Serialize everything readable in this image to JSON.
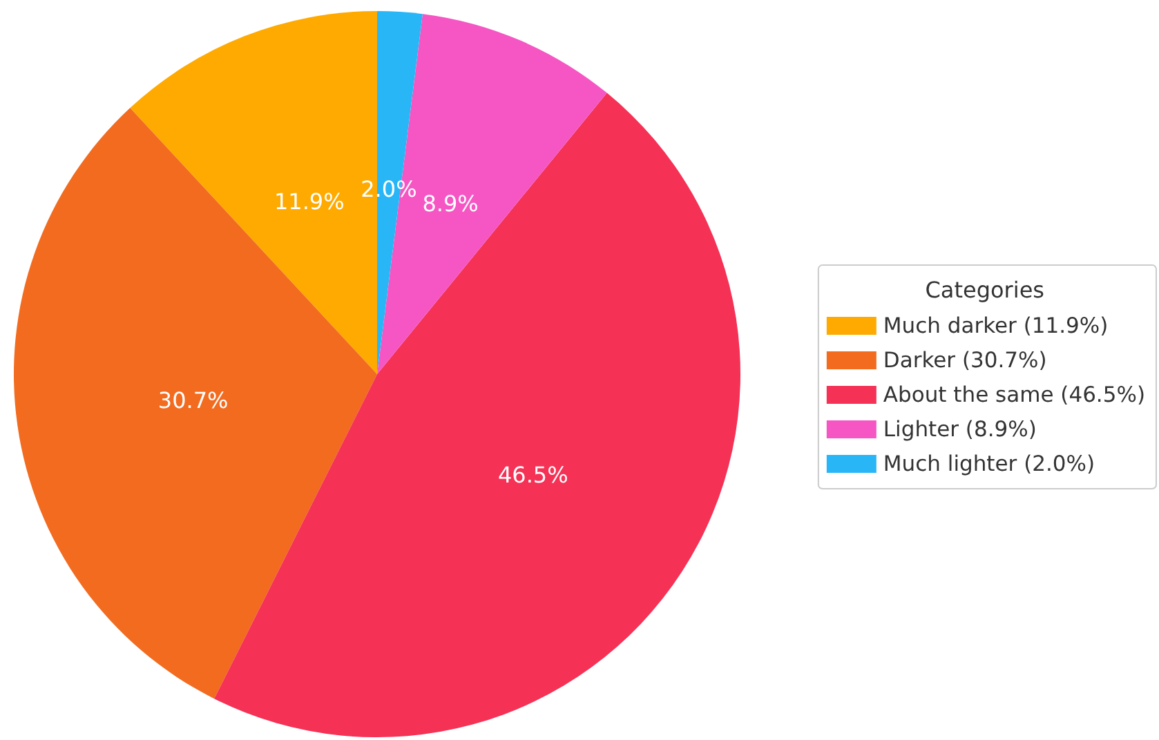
{
  "chart_data": {
    "type": "pie",
    "legend_title": "Categories",
    "categories": [
      "Much darker (11.9%)",
      "Darker (30.7%)",
      "About the same (46.5%)",
      "Lighter (8.9%)",
      "Much lighter (2.0%)"
    ],
    "values": [
      11.9,
      30.7,
      46.5,
      8.9,
      2.0
    ],
    "value_labels": [
      "11.9%",
      "30.7%",
      "46.5%",
      "8.9%",
      "2.0%"
    ],
    "colors": [
      "#ffaa00",
      "#f26b1f",
      "#f53155",
      "#f556c3",
      "#29b6f6"
    ],
    "legend": "right"
  }
}
